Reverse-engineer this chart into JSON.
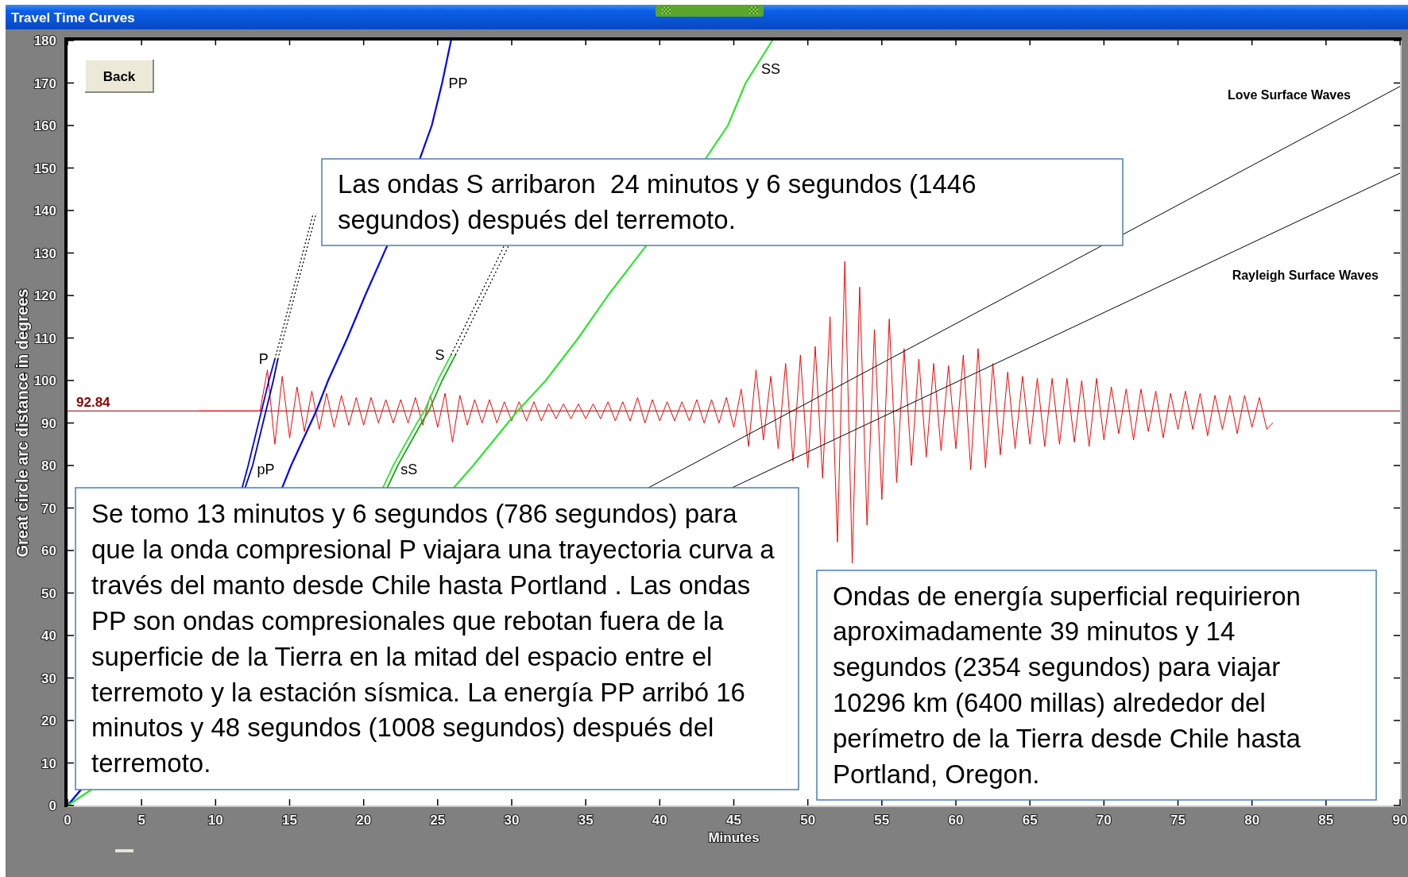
{
  "chart_data": {
    "type": "line",
    "title": "Travel Time Curves",
    "xlabel": "Minutes",
    "ylabel": "Great circle arc distance in degrees",
    "xlim": [
      0,
      90
    ],
    "xticks": [
      0,
      5,
      10,
      15,
      20,
      25,
      30,
      35,
      40,
      45,
      50,
      55,
      60,
      65,
      70,
      75,
      80,
      85,
      90
    ],
    "ylim": [
      0,
      180
    ],
    "yticks": [
      0,
      10,
      20,
      30,
      40,
      50,
      60,
      70,
      80,
      90,
      100,
      110,
      120,
      130,
      140,
      150,
      160,
      170,
      180
    ],
    "series": [
      {
        "color": "#ff0000",
        "x": [
          8.9,
          13.0,
          13.5,
          14.0,
          14.5,
          15.0,
          15.5,
          16.0,
          16.5,
          17.0,
          17.5,
          18.0,
          18.5,
          19.0,
          19.5,
          20.0,
          20.5,
          21.0,
          21.5,
          22.0,
          22.5,
          23.0,
          23.5,
          24.0,
          24.5,
          25.0,
          25.5,
          26.0,
          26.5,
          27.0,
          27.5,
          28.0,
          28.5,
          29.0,
          29.5,
          30.0,
          30.5,
          31.0,
          31.5,
          32.0,
          32.5,
          33.0,
          33.5,
          34.0,
          34.5,
          35.0,
          35.5,
          36.0,
          36.5,
          37.0,
          37.5,
          38.0,
          38.5,
          39.0,
          39.5,
          40.0,
          40.5,
          41.0,
          41.5,
          42.0,
          42.5,
          43.0,
          43.5,
          44.0,
          44.5,
          45.0,
          45.5,
          46.0,
          46.5,
          47.0,
          47.5,
          48.0,
          48.5,
          49.0,
          49.5,
          50.0,
          50.5,
          51.0,
          51.5,
          52.0,
          52.5,
          53.0,
          53.5,
          54.0,
          54.5,
          55.0,
          55.5,
          56.0,
          56.5,
          57.0,
          57.5,
          58.0,
          58.5,
          59.0,
          59.5,
          60.0,
          60.5,
          61.0,
          61.5,
          62.0,
          62.5,
          63.0,
          63.5,
          64.0,
          64.5,
          65.0,
          65.5,
          66.0,
          66.5,
          67.0,
          67.5,
          68.0,
          68.5,
          69.0,
          69.5,
          70.0,
          70.5,
          71.0,
          71.5,
          72.0,
          72.5,
          73.0,
          73.5,
          74.0,
          74.5,
          75.0,
          75.5,
          76.0,
          76.5,
          77.0,
          77.5,
          78.0,
          78.5,
          79.0,
          79.5,
          80.0,
          80.5,
          81.0,
          81.4
        ],
        "values": [
          92.84,
          92.84,
          102.5,
          85.0,
          101.0,
          86.5,
          98.5,
          88.0,
          97.5,
          88.5,
          97.0,
          89.0,
          96.5,
          89.5,
          96.0,
          89.5,
          96.0,
          90.0,
          95.5,
          90.0,
          95.5,
          90.0,
          96.0,
          89.5,
          96.5,
          89.0,
          97.0,
          85.5,
          96.5,
          89.5,
          95.5,
          90.0,
          95.5,
          90.0,
          95.0,
          90.5,
          95.0,
          90.5,
          95.0,
          90.5,
          94.5,
          91.0,
          94.5,
          91.0,
          94.5,
          91.0,
          94.5,
          91.0,
          95.0,
          90.5,
          95.0,
          90.5,
          96.0,
          90.0,
          95.5,
          90.5,
          95.0,
          90.5,
          95.0,
          90.5,
          95.5,
          90.0,
          95.5,
          90.0,
          96.0,
          89.0,
          98.0,
          84.5,
          102.5,
          86.0,
          101.0,
          84.0,
          104.0,
          81.0,
          106.0,
          79.5,
          108.0,
          77.0,
          115.0,
          62.0,
          128.0,
          57.0,
          122.0,
          66.0,
          112.0,
          72.0,
          114.5,
          76.0,
          107.5,
          80.0,
          105.0,
          82.0,
          104.0,
          83.5,
          103.5,
          84.0,
          106.0,
          79.0,
          107.5,
          79.5,
          104.0,
          82.5,
          102.0,
          84.0,
          101.0,
          85.0,
          100.5,
          84.5,
          100.5,
          85.0,
          100.5,
          85.5,
          100.0,
          84.5,
          100.5,
          86.0,
          98.5,
          87.5,
          98.0,
          86.0,
          98.0,
          88.0,
          97.5,
          86.5,
          97.0,
          88.5,
          97.5,
          88.5,
          97.0,
          87.0,
          96.5,
          88.5,
          96.5,
          87.5,
          96.5,
          89.0,
          96.0,
          88.5,
          90.0
        ]
      },
      {
        "name": "P",
        "color": "#0000ff",
        "x": [
          0,
          0.9,
          6,
          11.8,
          12.2,
          12.9,
          13.1,
          13.6,
          14.0
        ],
        "values": [
          0,
          3.7,
          null,
          74.8,
          80,
          90,
          92.84,
          100,
          105
        ]
      },
      {
        "name": "pP",
        "color": "#0000c0",
        "x": [
          12.0,
          12.5,
          13.2,
          13.4,
          13.9,
          14.2
        ],
        "values": [
          74.8,
          80,
          90,
          92.84,
          100,
          105
        ]
      },
      {
        "name": "PP",
        "color": "#0000ff",
        "x": [
          0,
          0.9,
          7,
          14.5,
          15.1,
          16.8,
          17.6,
          18.9,
          20.1,
          21.6,
          22.7,
          23.8,
          24.6,
          25.3,
          25.9
        ],
        "values": [
          0,
          3.7,
          null,
          74.8,
          80,
          92.84,
          100,
          110,
          120,
          131.8,
          null,
          152.2,
          160,
          170,
          180
        ]
      },
      {
        "name": "S",
        "color": "#2ee62e",
        "x": [
          0,
          1.6,
          10,
          21.3,
          22.0,
          23.6,
          24.1,
          25.0,
          25.9
        ],
        "values": [
          0,
          3.7,
          null,
          74.8,
          80,
          90,
          92.84,
          100,
          106
        ]
      },
      {
        "name": "sS",
        "color": "#1aa81a",
        "x": [
          21.6,
          22.3,
          23.9,
          24.4,
          25.3,
          26.2
        ],
        "values": [
          74.8,
          80,
          90,
          92.84,
          100,
          106
        ]
      },
      {
        "name": "SS",
        "color": "#2ee62e",
        "x": [
          0,
          1.6,
          12,
          26.1,
          27.4,
          30.4,
          32.3,
          34.5,
          36.5,
          39.1,
          41,
          43.1,
          44.6,
          45.8,
          47.6
        ],
        "values": [
          0,
          3.7,
          null,
          74.8,
          80,
          92.84,
          100,
          110,
          120,
          131.8,
          null,
          152.2,
          160,
          170,
          180
        ]
      },
      {
        "color": "#000000",
        "line_style": "dotted",
        "x": [
          14.0,
          16.6
        ],
        "values": [
          105,
          139.4
        ]
      },
      {
        "color": "#000000",
        "line_style": "dotted",
        "x": [
          14.2,
          16.8
        ],
        "values": [
          105,
          139.4
        ]
      },
      {
        "color": "#000000",
        "line_style": "dotted",
        "x": [
          25.9,
          29.5
        ],
        "values": [
          106,
          131.8
        ]
      },
      {
        "color": "#000000",
        "line_style": "dotted",
        "x": [
          26.2,
          29.8
        ],
        "values": [
          106,
          131.8
        ]
      },
      {
        "name": "Love Surface Waves",
        "color": "#000000",
        "x": [
          39.25,
          69.9,
          70.6,
          71.3,
          90
        ],
        "values": [
          74.8,
          131.8,
          null,
          134.4,
          169.2
        ]
      },
      {
        "name": "Rayleigh Surface Waves",
        "color": "#000000",
        "x": [
          44.9,
          90
        ],
        "values": [
          74.8,
          148.8
        ]
      }
    ],
    "ref_lines": [
      {
        "axis": "y",
        "value": 92.84,
        "label": "92.84",
        "color": "#8b0000"
      }
    ],
    "annotations": [
      "Back",
      "Las ondas S arribaron  24 minutos y 6 segundos (1446\nsegundos) después del terremoto.",
      "Se tomo 13 minutos y 6 segundos (786 segundos) para\nque la onda compresional P viajara una trayectoria curva a\ntravés del manto desde Chile hasta Portland . Las ondas\nPP son ondas compresionales que rebotan fuera de la\nsuperficie de la Tierra en la mitad del espacio entre el\nterremoto y la estación sísmica. La energía PP arribó 16\nminutos y 48 segundos (1008 segundos) después del\nterremoto.",
      "Ondas de energía superficial requirieron\naproximadamente 39 minutos y 14\nsegundos (2354 segundos) para viajar\n10296 km (6400 millas) alrededor del\nperímetro de la Tierra desde Chile hasta\nPortland, Oregon."
    ]
  }
}
